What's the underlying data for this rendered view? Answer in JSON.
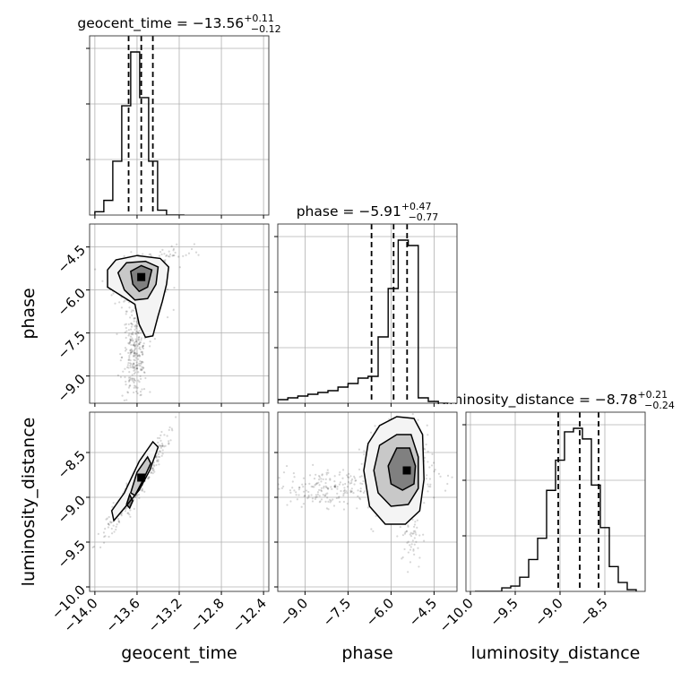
{
  "parameters": [
    "geocent_time",
    "phase",
    "luminosity_distance"
  ],
  "titles": [
    {
      "name": "geocent_time",
      "median": "−13.56",
      "plus": "+0.11",
      "minus": "−0.12"
    },
    {
      "name": "phase",
      "median": "−5.91",
      "plus": "+0.47",
      "minus": "−0.77"
    },
    {
      "name": "luminosity_distance",
      "median": "−8.78",
      "plus": "+0.21",
      "minus": "−0.24"
    }
  ],
  "axis_labels": {
    "x": [
      "geocent_time",
      "phase",
      "luminosity_distance"
    ],
    "y": [
      "phase",
      "luminosity_distance"
    ]
  },
  "chart_data": {
    "type": "corner",
    "ranges": {
      "geocent_time": [
        -14.05,
        -12.35
      ],
      "phase": [
        -9.95,
        -3.7
      ],
      "luminosity_distance": [
        -10.05,
        -8.05
      ]
    },
    "ticks": {
      "geocent_time": [
        -14.0,
        -13.6,
        -13.2,
        -12.8,
        -12.4
      ],
      "phase": [
        -9.0,
        -7.5,
        -6.0,
        -4.5
      ],
      "luminosity_distance": [
        -10.0,
        -9.5,
        -9.0,
        -8.5
      ]
    },
    "tick_labels": {
      "geocent_time": [
        "−14.0",
        "−13.6",
        "−13.2",
        "−12.8",
        "−12.4"
      ],
      "phase": [
        "−9.0",
        "−7.5",
        "−6.0",
        "−4.5"
      ],
      "luminosity_distance": [
        "−10.0",
        "−9.5",
        "−9.0",
        "−8.5"
      ]
    },
    "histograms": {
      "geocent_time": {
        "edges": [
          -14.0,
          -13.915,
          -13.83,
          -13.745,
          -13.66,
          -13.575,
          -13.49,
          -13.405,
          -13.32,
          -13.235,
          -13.15
        ],
        "counts": [
          2,
          9,
          33,
          67,
          100,
          72,
          33,
          3,
          0,
          0
        ]
      },
      "phase": {
        "edges": [
          -9.95,
          -9.6,
          -9.25,
          -8.9,
          -8.55,
          -8.2,
          -7.85,
          -7.5,
          -7.15,
          -6.8,
          -6.45,
          -6.1,
          -5.75,
          -5.4,
          -5.05,
          -4.7,
          -4.35,
          -4.0
        ],
        "counts": [
          2,
          3,
          4,
          5,
          6,
          7,
          9,
          11,
          14,
          15,
          37,
          64,
          91,
          88,
          3,
          1,
          0
        ]
      },
      "luminosity_distance": {
        "edges": [
          -9.95,
          -9.85,
          -9.75,
          -9.65,
          -9.55,
          -9.45,
          -9.35,
          -9.25,
          -9.15,
          -9.05,
          -8.95,
          -8.85,
          -8.75,
          -8.65,
          -8.55,
          -8.45,
          -8.35,
          -8.25,
          -8.15
        ],
        "counts": [
          0,
          0,
          0,
          2,
          3,
          8,
          18,
          30,
          57,
          74,
          90,
          92,
          86,
          60,
          36,
          14,
          5,
          1
        ]
      }
    },
    "quantiles": {
      "geocent_time": [
        -13.68,
        -13.56,
        -13.45
      ],
      "phase": [
        -6.68,
        -5.91,
        -5.44
      ],
      "luminosity_distance": [
        -9.02,
        -8.78,
        -8.57
      ]
    },
    "scatter_ellipses": [
      {
        "x": "geocent_time",
        "y": "phase",
        "n": 320,
        "cx": -13.58,
        "cy": -5.8,
        "sx": 0.12,
        "sy": 0.45,
        "rho": 0.0
      },
      {
        "x": "geocent_time",
        "y": "phase",
        "n": 260,
        "cx": -13.62,
        "cy": -8.3,
        "sx": 0.06,
        "sy": 0.75,
        "rho": 0.0
      },
      {
        "x": "geocent_time",
        "y": "phase",
        "n": 40,
        "cx": -13.3,
        "cy": -4.9,
        "sx": 0.15,
        "sy": 0.3,
        "rho": 0.6
      },
      {
        "x": "geocent_time",
        "y": "luminosity_distance",
        "n": 420,
        "cx": -13.6,
        "cy": -8.85,
        "sx": 0.14,
        "sy": 0.26,
        "rho": 0.95
      },
      {
        "x": "phase",
        "y": "luminosity_distance",
        "n": 330,
        "cx": -5.8,
        "cy": -8.72,
        "sx": 0.65,
        "sy": 0.22,
        "rho": 0.05
      },
      {
        "x": "phase",
        "y": "luminosity_distance",
        "n": 200,
        "cx": -8.3,
        "cy": -8.9,
        "sx": 0.9,
        "sy": 0.1,
        "rho": 0.0
      },
      {
        "x": "phase",
        "y": "luminosity_distance",
        "n": 60,
        "cx": -5.3,
        "cy": -9.4,
        "sx": 0.2,
        "sy": 0.2,
        "rho": 0.0
      }
    ],
    "density_peaks": [
      {
        "x": "geocent_time",
        "y": "phase",
        "cx": -13.56,
        "cy": -5.6,
        "peak": [
          -13.56,
          -5.55
        ]
      },
      {
        "x": "geocent_time",
        "y": "luminosity_distance",
        "cx": -13.56,
        "cy": -8.8,
        "peak": [
          -13.56,
          -8.78
        ]
      },
      {
        "x": "phase",
        "y": "luminosity_distance",
        "cx": -5.6,
        "cy": -8.72,
        "peak": [
          -5.45,
          -8.7
        ]
      }
    ],
    "contours": [
      {
        "x": "geocent_time",
        "y": "phase",
        "level": "outer",
        "points": [
          [
            -13.88,
            -5.3
          ],
          [
            -13.8,
            -4.95
          ],
          [
            -13.6,
            -4.8
          ],
          [
            -13.38,
            -4.9
          ],
          [
            -13.3,
            -5.2
          ],
          [
            -13.32,
            -5.8
          ],
          [
            -13.36,
            -6.4
          ],
          [
            -13.4,
            -6.9
          ],
          [
            -13.45,
            -7.6
          ],
          [
            -13.52,
            -7.65
          ],
          [
            -13.58,
            -7.2
          ],
          [
            -13.62,
            -6.5
          ],
          [
            -13.75,
            -6.2
          ],
          [
            -13.88,
            -5.9
          ]
        ]
      },
      {
        "x": "geocent_time",
        "y": "phase",
        "level": "mid",
        "points": [
          [
            -13.78,
            -5.4
          ],
          [
            -13.7,
            -5.05
          ],
          [
            -13.52,
            -5.0
          ],
          [
            -13.4,
            -5.2
          ],
          [
            -13.42,
            -5.8
          ],
          [
            -13.5,
            -6.3
          ],
          [
            -13.62,
            -6.35
          ],
          [
            -13.72,
            -6.0
          ]
        ]
      },
      {
        "x": "geocent_time",
        "y": "phase",
        "level": "inner",
        "points": [
          [
            -13.66,
            -5.35
          ],
          [
            -13.56,
            -5.15
          ],
          [
            -13.46,
            -5.3
          ],
          [
            -13.5,
            -5.9
          ],
          [
            -13.58,
            -6.05
          ],
          [
            -13.64,
            -5.8
          ]
        ]
      },
      {
        "x": "geocent_time",
        "y": "luminosity_distance",
        "level": "outer",
        "points": [
          [
            -13.84,
            -9.15
          ],
          [
            -13.72,
            -8.95
          ],
          [
            -13.58,
            -8.6
          ],
          [
            -13.45,
            -8.38
          ],
          [
            -13.4,
            -8.44
          ],
          [
            -13.48,
            -8.7
          ],
          [
            -13.58,
            -8.92
          ],
          [
            -13.72,
            -9.12
          ],
          [
            -13.82,
            -9.26
          ]
        ]
      },
      {
        "x": "geocent_time",
        "y": "luminosity_distance",
        "level": "mid",
        "points": [
          [
            -13.66,
            -8.95
          ],
          [
            -13.6,
            -8.72
          ],
          [
            -13.5,
            -8.55
          ],
          [
            -13.47,
            -8.62
          ],
          [
            -13.54,
            -8.8
          ],
          [
            -13.62,
            -8.98
          ]
        ]
      },
      {
        "x": "geocent_time",
        "y": "luminosity_distance",
        "level": "inner",
        "points": [
          [
            -13.7,
            -9.08
          ],
          [
            -13.67,
            -8.97
          ],
          [
            -13.64,
            -9.04
          ],
          [
            -13.67,
            -9.12
          ]
        ]
      },
      {
        "x": "phase",
        "y": "luminosity_distance",
        "level": "outer",
        "points": [
          [
            -6.95,
            -8.7
          ],
          [
            -6.8,
            -8.4
          ],
          [
            -6.4,
            -8.2
          ],
          [
            -5.8,
            -8.1
          ],
          [
            -5.2,
            -8.12
          ],
          [
            -4.9,
            -8.3
          ],
          [
            -4.85,
            -8.8
          ],
          [
            -5.0,
            -9.15
          ],
          [
            -5.5,
            -9.3
          ],
          [
            -6.2,
            -9.3
          ],
          [
            -6.75,
            -9.1
          ]
        ]
      },
      {
        "x": "phase",
        "y": "luminosity_distance",
        "level": "mid",
        "points": [
          [
            -6.6,
            -8.7
          ],
          [
            -6.4,
            -8.42
          ],
          [
            -5.8,
            -8.3
          ],
          [
            -5.3,
            -8.3
          ],
          [
            -5.05,
            -8.55
          ],
          [
            -5.05,
            -8.9
          ],
          [
            -5.4,
            -9.08
          ],
          [
            -6.0,
            -9.1
          ],
          [
            -6.45,
            -8.95
          ]
        ]
      },
      {
        "x": "phase",
        "y": "luminosity_distance",
        "level": "inner",
        "points": [
          [
            -6.1,
            -8.65
          ],
          [
            -5.8,
            -8.45
          ],
          [
            -5.35,
            -8.45
          ],
          [
            -5.15,
            -8.65
          ],
          [
            -5.2,
            -8.85
          ],
          [
            -5.6,
            -8.92
          ],
          [
            -6.0,
            -8.85
          ]
        ]
      }
    ]
  }
}
